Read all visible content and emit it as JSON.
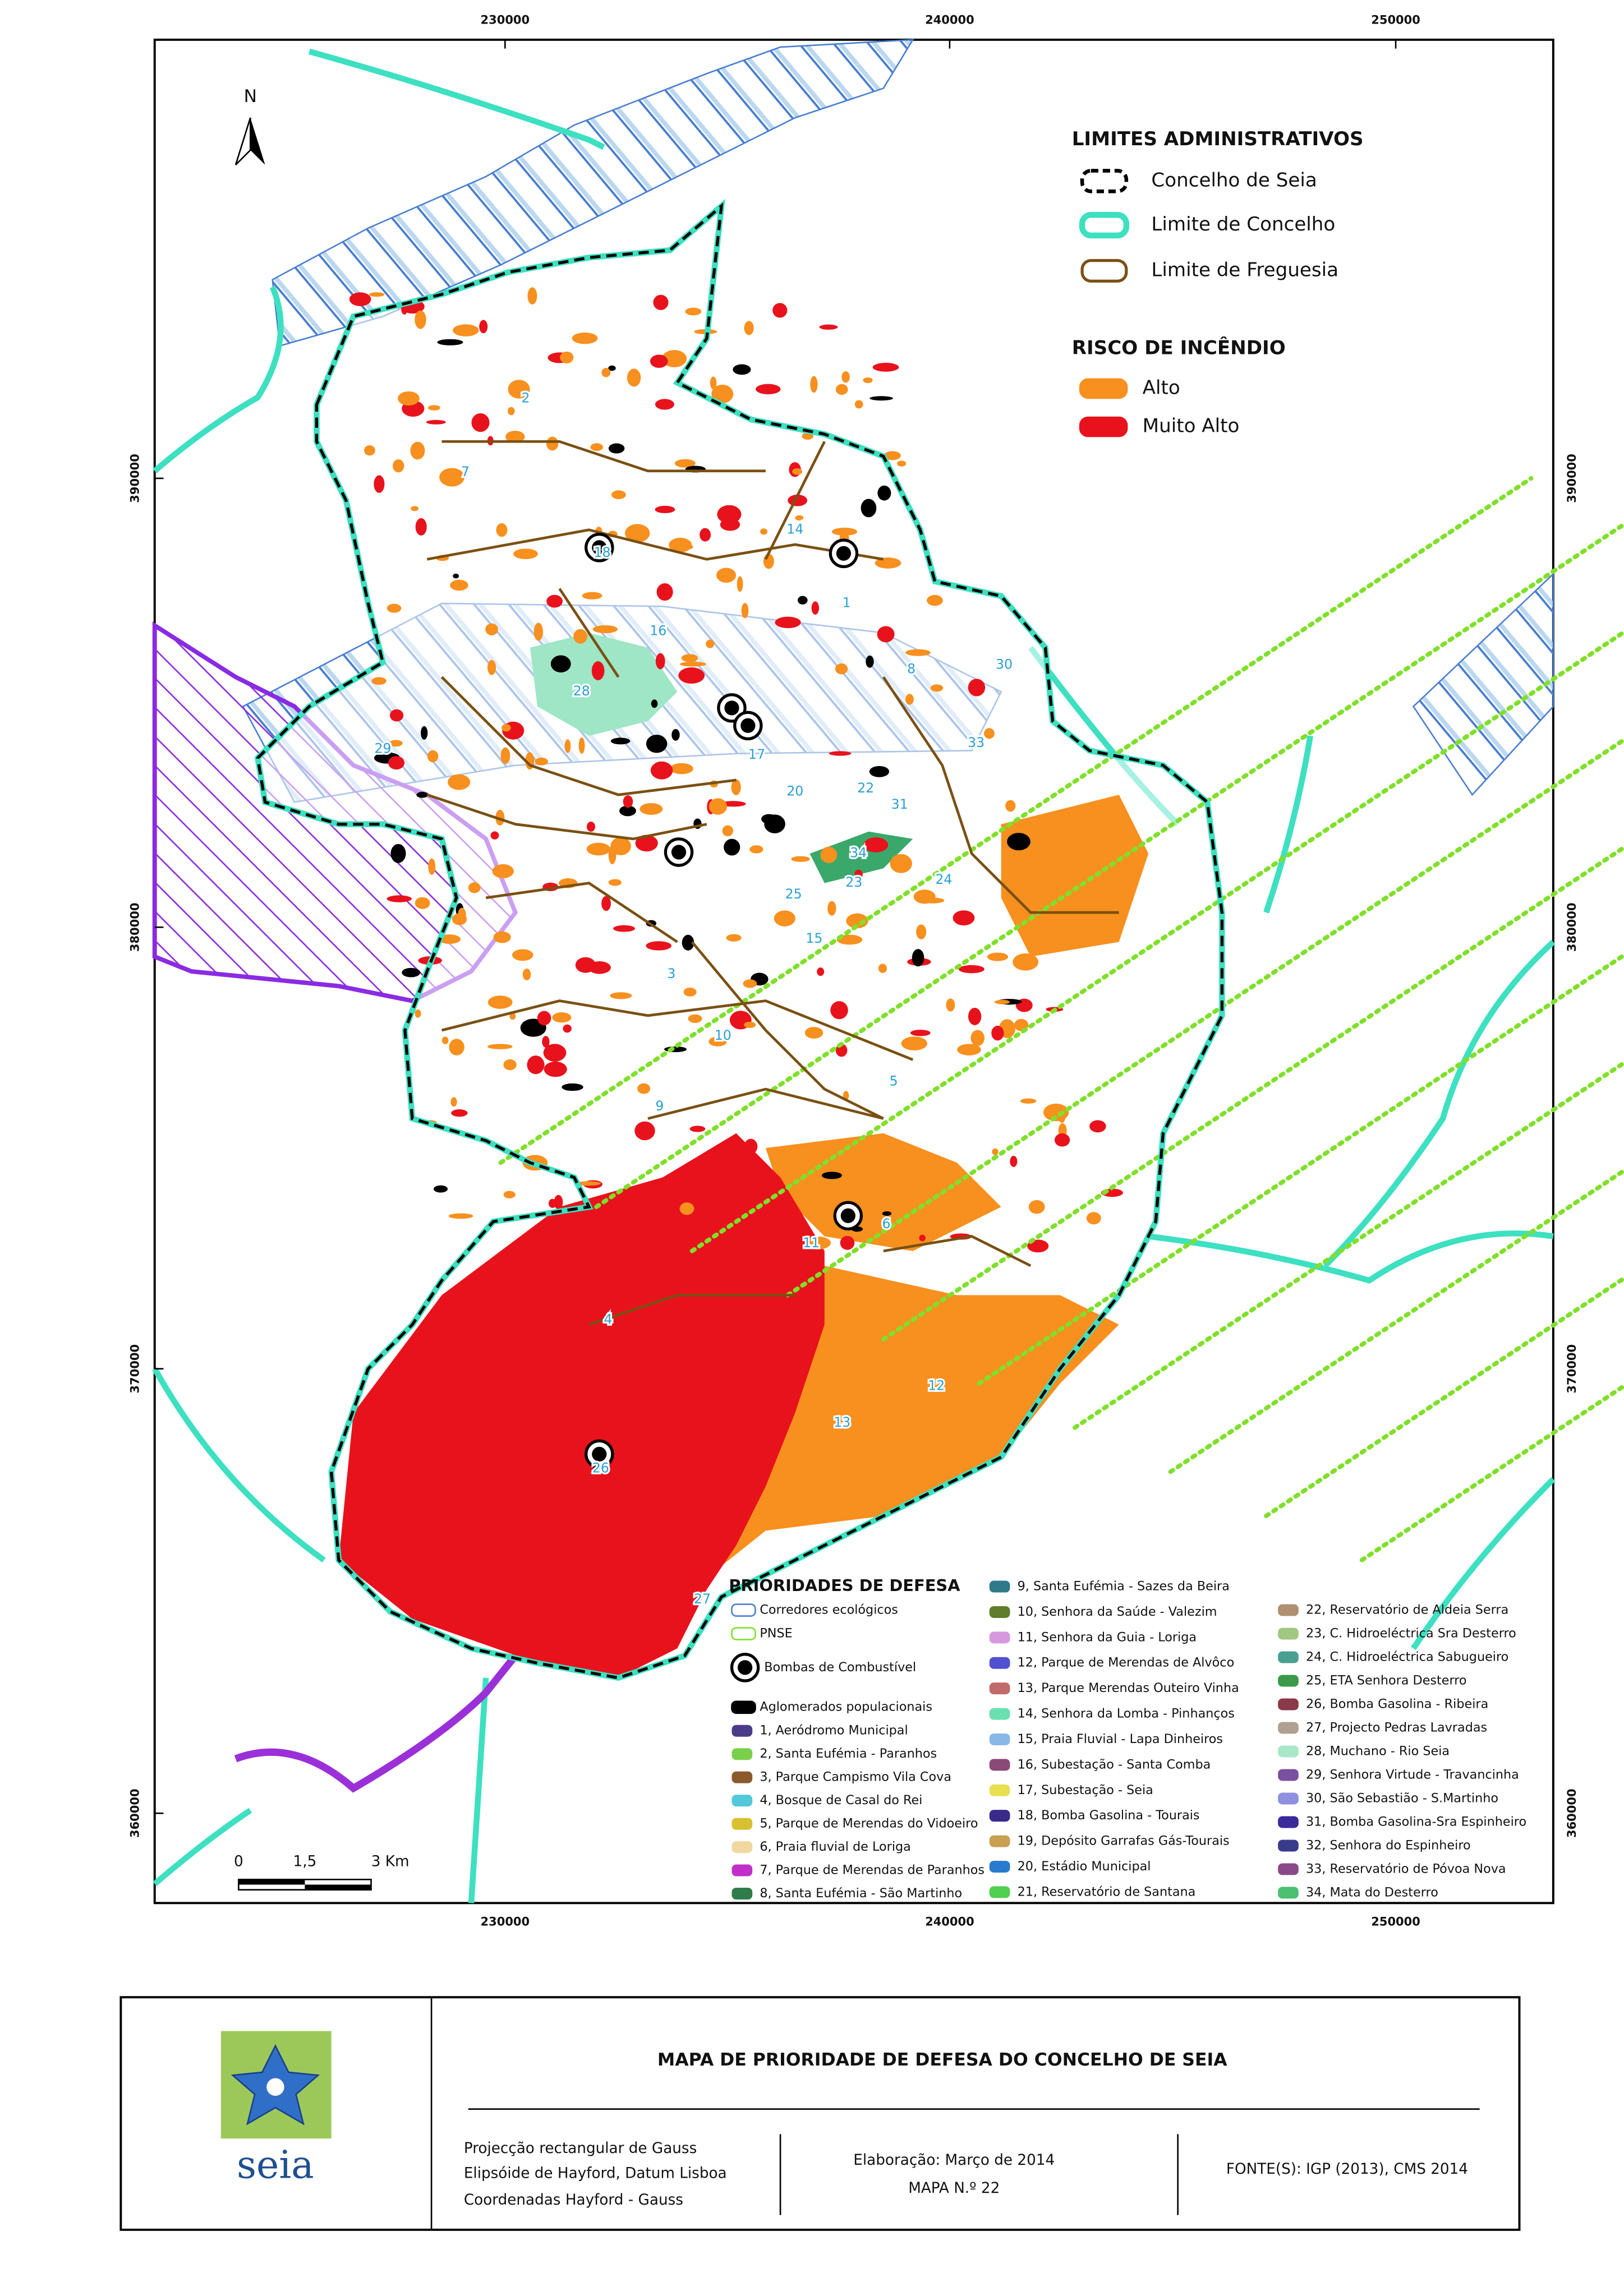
{
  "map": {
    "north": "N",
    "x_ticks": [
      "230000",
      "240000",
      "250000"
    ],
    "y_ticks": [
      "390000",
      "380000",
      "370000",
      "360000"
    ],
    "scale_bar": [
      "0",
      "1,5",
      "3 Km"
    ],
    "admin_legend": {
      "title": "LIMITES ADMINISTRATIVOS",
      "items": [
        "Concelho de Seia",
        "Limite de Concelho",
        "Limite de Freguesia"
      ]
    },
    "risk_legend": {
      "title": "RISCO DE INCÊNDIO",
      "items": [
        "Alto",
        "Muito Alto"
      ]
    },
    "site_labels": [
      "1",
      "2",
      "3",
      "4",
      "5",
      "6",
      "7",
      "8",
      "9",
      "10",
      "11",
      "12",
      "13",
      "14",
      "15",
      "16",
      "17",
      "18",
      "20",
      "22",
      "23",
      "24",
      "25",
      "26",
      "27",
      "28",
      "29",
      "30",
      "31",
      "33",
      "34"
    ],
    "priorities": {
      "title": "PRIORIDADES DE DEFESA",
      "general": [
        "Corredores ecológicos",
        "PNSE",
        "Bombas de Combustível",
        "Aglomerados populacionais"
      ],
      "items": [
        "1, Aeródromo Municipal",
        "2, Santa Eufémia - Paranhos",
        "3, Parque Campismo Vila Cova",
        "4, Bosque de Casal do Rei",
        "5, Parque de Merendas do Vidoeiro",
        "6, Praia fluvial de Loriga",
        "7, Parque de Merendas de Paranhos",
        "8, Santa Eufémia - São Martinho",
        "9, Santa Eufémia - Sazes da Beira",
        "10, Senhora da Saúde - Valezim",
        "11, Senhora da Guia - Loriga",
        "12, Parque de Merendas de Alvôco",
        "13, Parque Merendas Outeiro Vinha",
        "14, Senhora da Lomba - Pinhanços",
        "15, Praia Fluvial - Lapa Dinheiros",
        "16, Subestação - Santa Comba",
        "17, Subestação - Seia",
        "18, Bomba Gasolina - Tourais",
        "19, Depósito Garrafas Gás-Tourais",
        "20, Estádio Municipal",
        "21, Reservatório de Santana",
        "22, Reservatório de Aldeia Serra",
        "23, C. Hidroeléctrica Sra Desterro",
        "24, C. Hidroeléctrica Sabugueiro",
        "25, ETA Senhora Desterro",
        "26, Bomba Gasolina - Ribeira",
        "27, Projecto Pedras Lavradas",
        "28, Muchano - Rio Seia",
        "29, Senhora Virtude - Travancinha",
        "30, São Sebastião - S.Martinho",
        "31, Bomba Gasolina-Sra Espinheiro",
        "32, Senhora do Espinheiro",
        "33, Reservatório de Póvoa Nova",
        "34, Mata do Desterro"
      ]
    }
  },
  "title_block": {
    "logo_text": "seia",
    "title": "MAPA DE PRIORIDADE DE DEFESA DO CONCELHO DE SEIA",
    "projection": [
      "Projecção rectangular de Gauss",
      "Elipsóide de Hayford, Datum Lisboa",
      "Coordenadas Hayford - Gauss"
    ],
    "elaboration": "Elaboração: Março de 2014",
    "map_number": "MAPA N.º 22",
    "sources": "FONTE(S): IGP (2013), CMS 2014"
  }
}
